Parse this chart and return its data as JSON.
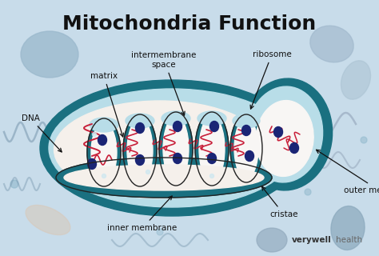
{
  "title": "Mitochondria Function",
  "title_fontsize": 18,
  "title_fontweight": "bold",
  "bg_color": "#c8dcea",
  "teal_dark": "#1a7080",
  "teal_mid": "#2a8898",
  "light_blue_inner": "#b8dde8",
  "cream_white": "#f5f0eb",
  "near_white": "#f8f6f4",
  "dna_color": "#c8203a",
  "ribosome_color": "#1a2575",
  "anno_color": "#111111",
  "watermark_bold": "verywell",
  "watermark_light": "health",
  "bg_oval_color": "#a8c4d8",
  "bg_oval2_color": "#b8ccd8",
  "bg_peach": "#d8c8b8",
  "bg_wave_color": "#90b8cc"
}
